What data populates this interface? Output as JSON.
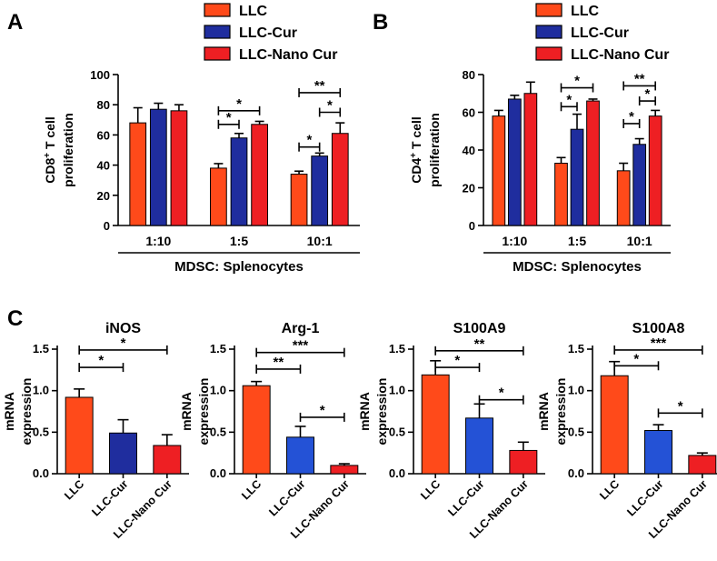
{
  "colors": {
    "LLC": "#ff4a1a",
    "LLC-Cur": "#1f2d9e",
    "LLC-Nano Cur": "#ee1f23",
    "LLC-Cur-light": "#2452d6"
  },
  "chart_data": [
    {
      "id": "A",
      "panel_label": "A",
      "type": "bar",
      "ylabel": [
        "CD8",
        "+",
        " T cell",
        "proliferation"
      ],
      "xlabel": "MDSC: Splenocytes",
      "categories": [
        "1:10",
        "1:5",
        "10:1"
      ],
      "ylim": [
        0,
        100
      ],
      "yticks": [
        0,
        20,
        40,
        60,
        80,
        100
      ],
      "legend": [
        "LLC",
        "LLC-Cur",
        "LLC-Nano Cur"
      ],
      "series": [
        {
          "name": "LLC",
          "values": [
            68,
            38,
            34
          ],
          "errors": [
            10,
            3,
            2
          ]
        },
        {
          "name": "LLC-Cur",
          "values": [
            77,
            58,
            46
          ],
          "errors": [
            4,
            3,
            2
          ]
        },
        {
          "name": "LLC-Nano Cur",
          "values": [
            76,
            67,
            61
          ],
          "errors": [
            4,
            2,
            7
          ]
        }
      ],
      "significance": [
        {
          "group": 1,
          "from": 0,
          "to": 1,
          "label": "*",
          "y": 67
        },
        {
          "group": 1,
          "from": 0,
          "to": 2,
          "label": "*",
          "y": 76
        },
        {
          "group": 2,
          "from": 0,
          "to": 1,
          "label": "*",
          "y": 52
        },
        {
          "group": 2,
          "from": 1,
          "to": 2,
          "label": "*",
          "y": 75
        },
        {
          "group": 2,
          "from": 0,
          "to": 2,
          "label": "**",
          "y": 88
        }
      ]
    },
    {
      "id": "B",
      "panel_label": "B",
      "type": "bar",
      "ylabel": [
        "CD4",
        "+",
        " T cell",
        "proliferation"
      ],
      "xlabel": "MDSC: Splenocytes",
      "categories": [
        "1:10",
        "1:5",
        "10:1"
      ],
      "ylim": [
        0,
        80
      ],
      "yticks": [
        0,
        20,
        40,
        60,
        80
      ],
      "legend": [
        "LLC",
        "LLC-Cur",
        "LLC-Nano Cur"
      ],
      "series": [
        {
          "name": "LLC",
          "values": [
            58,
            33,
            29
          ],
          "errors": [
            3,
            3,
            4
          ]
        },
        {
          "name": "LLC-Cur",
          "values": [
            67,
            51,
            43
          ],
          "errors": [
            2,
            8,
            3
          ]
        },
        {
          "name": "LLC-Nano Cur",
          "values": [
            70,
            66,
            58
          ],
          "errors": [
            6,
            1,
            3
          ]
        }
      ],
      "significance": [
        {
          "group": 1,
          "from": 0,
          "to": 1,
          "label": "*",
          "y": 63
        },
        {
          "group": 1,
          "from": 0,
          "to": 2,
          "label": "*",
          "y": 73
        },
        {
          "group": 2,
          "from": 0,
          "to": 1,
          "label": "*",
          "y": 54
        },
        {
          "group": 2,
          "from": 1,
          "to": 2,
          "label": "*",
          "y": 66
        },
        {
          "group": 2,
          "from": 0,
          "to": 2,
          "label": "**",
          "y": 74
        }
      ]
    },
    {
      "id": "C1",
      "panel_label": "C",
      "type": "bar",
      "title": "iNOS",
      "ylabel": [
        "mRNA",
        "expression"
      ],
      "categories": [
        "LLC",
        "LLC-Cur",
        "LLC-Nano Cur"
      ],
      "ylim": [
        0,
        1.5
      ],
      "yticks": [
        "0.0",
        "0.5",
        "1.0",
        "1.5"
      ],
      "values": [
        0.92,
        0.49,
        0.34
      ],
      "errors": [
        0.1,
        0.16,
        0.13
      ],
      "bar_colors": [
        "LLC",
        "LLC-Cur",
        "LLC-Nano Cur"
      ],
      "significance": [
        {
          "from": 0,
          "to": 1,
          "label": "*",
          "y": 1.28
        },
        {
          "from": 0,
          "to": 2,
          "label": "*",
          "y": 1.49
        }
      ]
    },
    {
      "id": "C2",
      "type": "bar",
      "title": "Arg-1",
      "ylabel": [
        "mRNA",
        "expression"
      ],
      "categories": [
        "LLC",
        "LLC-Cur",
        "LLC-Nano Cur"
      ],
      "ylim": [
        0,
        1.5
      ],
      "yticks": [
        "0.0",
        "0.5",
        "1.0",
        "1.5"
      ],
      "values": [
        1.06,
        0.44,
        0.1
      ],
      "errors": [
        0.05,
        0.13,
        0.02
      ],
      "bar_colors": [
        "LLC",
        "LLC-Cur-light",
        "LLC-Nano Cur"
      ],
      "significance": [
        {
          "from": 0,
          "to": 1,
          "label": "**",
          "y": 1.26
        },
        {
          "from": 1,
          "to": 2,
          "label": "*",
          "y": 0.68
        },
        {
          "from": 0,
          "to": 2,
          "label": "***",
          "y": 1.46
        }
      ]
    },
    {
      "id": "C3",
      "type": "bar",
      "title": "S100A9",
      "ylabel": [
        "mRNA",
        "expression"
      ],
      "categories": [
        "LLC",
        "LLC-Cur",
        "LLC-Nano Cur"
      ],
      "ylim": [
        0,
        1.5
      ],
      "yticks": [
        "0.0",
        "0.5",
        "1.0",
        "1.5"
      ],
      "values": [
        1.19,
        0.67,
        0.28
      ],
      "errors": [
        0.17,
        0.17,
        0.1
      ],
      "bar_colors": [
        "LLC",
        "LLC-Cur-light",
        "LLC-Nano Cur"
      ],
      "significance": [
        {
          "from": 0,
          "to": 1,
          "label": "*",
          "y": 1.28
        },
        {
          "from": 1,
          "to": 2,
          "label": "*",
          "y": 0.89
        },
        {
          "from": 0,
          "to": 2,
          "label": "**",
          "y": 1.48
        }
      ]
    },
    {
      "id": "C4",
      "type": "bar",
      "title": "S100A8",
      "ylabel": [
        "mRNA",
        "expression"
      ],
      "categories": [
        "LLC",
        "LLC-Cur",
        "LLC-Nano Cur"
      ],
      "ylim": [
        0,
        1.5
      ],
      "yticks": [
        "0.0",
        "0.5",
        "1.0",
        "1.5"
      ],
      "values": [
        1.18,
        0.52,
        0.22
      ],
      "errors": [
        0.17,
        0.07,
        0.03
      ],
      "bar_colors": [
        "LLC",
        "LLC-Cur-light",
        "LLC-Nano Cur"
      ],
      "significance": [
        {
          "from": 0,
          "to": 1,
          "label": "*",
          "y": 1.3
        },
        {
          "from": 1,
          "to": 2,
          "label": "*",
          "y": 0.73
        },
        {
          "from": 0,
          "to": 2,
          "label": "***",
          "y": 1.49
        }
      ]
    }
  ]
}
